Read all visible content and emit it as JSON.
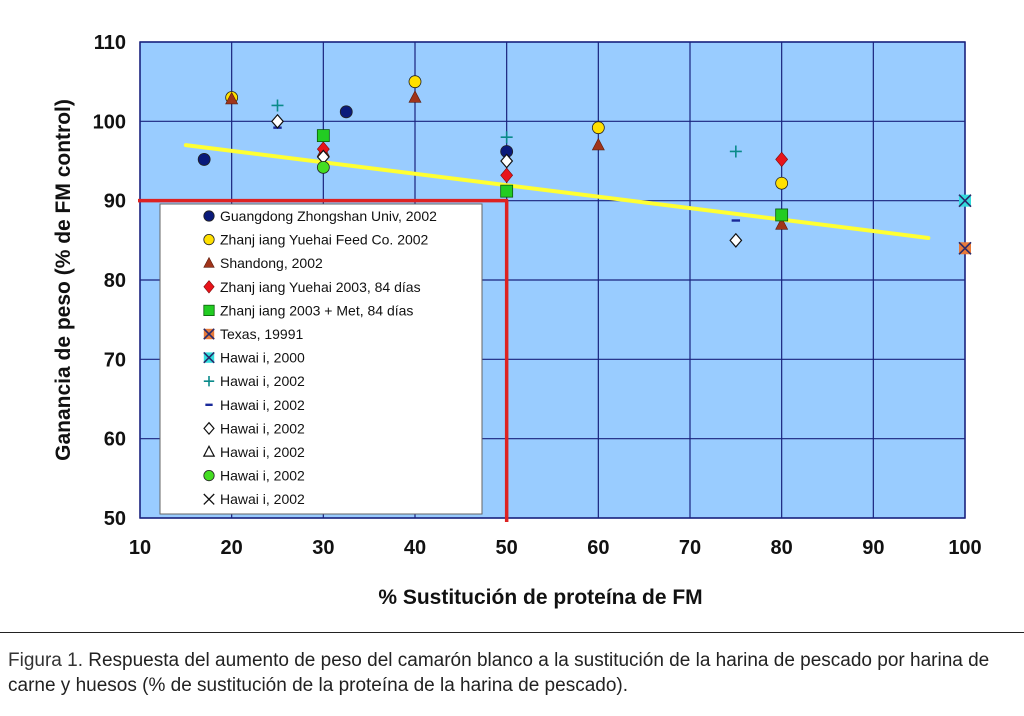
{
  "chart_data": {
    "type": "scatter",
    "xlabel": "% Sustitución de proteína de FM",
    "ylabel": "Ganancia de peso (% de FM control)",
    "xlim": [
      10,
      100
    ],
    "ylim": [
      50,
      110
    ],
    "xticks": [
      10,
      20,
      30,
      40,
      50,
      60,
      70,
      80,
      90,
      100
    ],
    "yticks": [
      50,
      60,
      70,
      80,
      90,
      100,
      110
    ],
    "grid": true,
    "legend_position": "bottom-left",
    "background_color": "#99ccff",
    "grid_color": "#1a237e",
    "series": [
      {
        "name": "Guangdong Zhongshan Univ, 2002",
        "marker": "circle",
        "color": "#0a1a7a",
        "points": [
          [
            17,
            95.2
          ],
          [
            32.5,
            101.2
          ],
          [
            50,
            96.2
          ]
        ]
      },
      {
        "name": "Zhanj iang Yuehai Feed Co. 2002",
        "marker": "circle",
        "color": "#ffe000",
        "points": [
          [
            20,
            103
          ],
          [
            40,
            105
          ],
          [
            60,
            99.2
          ],
          [
            80,
            92.2
          ]
        ]
      },
      {
        "name": "Shandong, 2002",
        "marker": "triangle",
        "color": "#a0341a",
        "points": [
          [
            20,
            102.8
          ],
          [
            30,
            96.2
          ],
          [
            40,
            103
          ],
          [
            60,
            97
          ],
          [
            80,
            87
          ]
        ]
      },
      {
        "name": "Zhanj iang Yuehai 2003, 84 días",
        "marker": "diamond",
        "color": "#e8141a",
        "points": [
          [
            30,
            96.5
          ],
          [
            50,
            93.2
          ],
          [
            80,
            95.2
          ]
        ]
      },
      {
        "name": "Zhanj iang 2003 + Met, 84 días",
        "marker": "square",
        "color": "#22cc22",
        "points": [
          [
            30,
            98.2
          ],
          [
            50,
            91.2
          ],
          [
            80,
            88.2
          ]
        ]
      },
      {
        "name": "Texas, 19991",
        "marker": "x-square",
        "color": "#e87a3a",
        "points": [
          [
            100,
            84
          ]
        ]
      },
      {
        "name": "Hawai i, 2000",
        "marker": "x-square",
        "color": "#33dddd",
        "points": [
          [
            100,
            90
          ]
        ]
      },
      {
        "name": "Hawai i, 2002",
        "marker": "plus",
        "color": "#0a8a8a",
        "points": [
          [
            25,
            102
          ],
          [
            50,
            98
          ],
          [
            75,
            96.2
          ]
        ]
      },
      {
        "name": "Hawai i, 2002",
        "marker": "dash",
        "color": "#1a2a9a",
        "points": [
          [
            25,
            99.2
          ],
          [
            75,
            87.5
          ]
        ]
      },
      {
        "name": "Hawai i, 2002",
        "marker": "diamond-open",
        "color": "#111111",
        "points": [
          [
            25,
            100
          ],
          [
            30,
            95.5
          ],
          [
            50,
            95
          ],
          [
            75,
            85
          ]
        ]
      },
      {
        "name": "Hawai i, 2002",
        "marker": "triangle-open",
        "color": "#111111",
        "points": []
      },
      {
        "name": "Hawai i, 2002",
        "marker": "circle",
        "color": "#44dd22",
        "points": [
          [
            30,
            94.2
          ]
        ]
      },
      {
        "name": "Hawai i, 2002",
        "marker": "x",
        "color": "#111111",
        "points": []
      }
    ],
    "trendline": {
      "color": "#ffff33",
      "from": [
        15,
        97
      ],
      "to": [
        96,
        85.3
      ]
    },
    "reference_lines": {
      "color": "#dd2222",
      "y": 90,
      "x": 50
    }
  },
  "caption": {
    "label": "Figura 1.",
    "text": " Respuesta del aumento de peso del camarón blanco a la sustitución de la harina de pescado por harina de carne y huesos (% de sustitución de la proteína de la harina de pescado)."
  }
}
